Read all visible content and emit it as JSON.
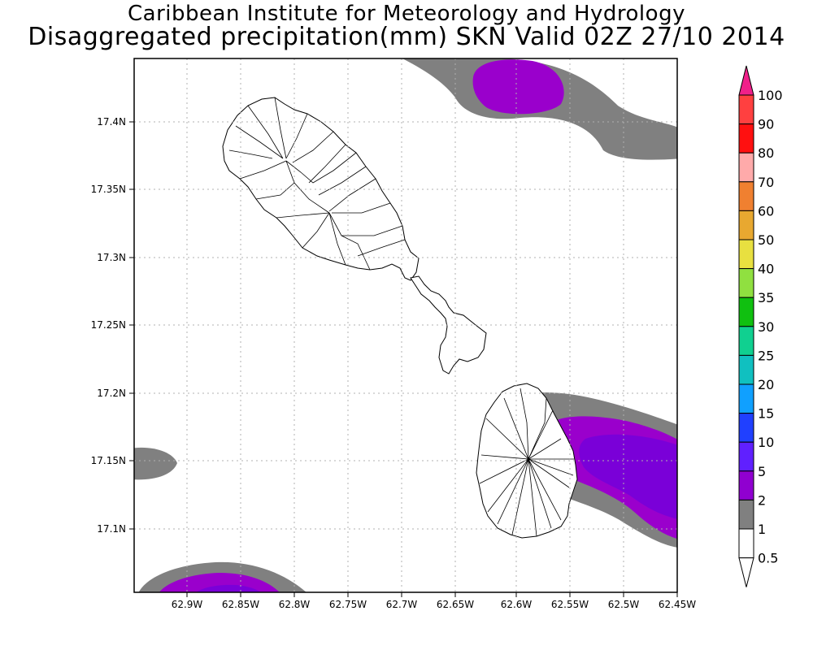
{
  "title": {
    "line1": "Caribbean Institute for Meteorology and Hydrology",
    "line2": "Disaggregated precipitation(mm) SKN Valid 02Z 27/10 2014"
  },
  "axes": {
    "x_ticks": [
      "62.9W",
      "62.85W",
      "62.8W",
      "62.75W",
      "62.7W",
      "62.65W",
      "62.6W",
      "62.55W",
      "62.5W",
      "62.45W"
    ],
    "y_ticks": [
      "17.4N",
      "17.35N",
      "17.3N",
      "17.25N",
      "17.2N",
      "17.15N",
      "17.1N"
    ]
  },
  "colorbar": {
    "labels": [
      "100",
      "90",
      "80",
      "70",
      "60",
      "50",
      "40",
      "35",
      "30",
      "25",
      "20",
      "15",
      "10",
      "5",
      "2",
      "1",
      "0.5"
    ],
    "colors": [
      "#f0208a",
      "#ff4040",
      "#ff1010",
      "#ffaaaa",
      "#f08030",
      "#e8a830",
      "#e8e040",
      "#90e040",
      "#10c010",
      "#10d090",
      "#10c0c0",
      "#10a0ff",
      "#2040ff",
      "#6020ff",
      "#9000d0",
      "#808080",
      "#ffffff"
    ]
  },
  "legend_colors": {
    "rain_0_5_to_1": "#808080",
    "rain_1_to_2": "#9a00cc",
    "rain_2_to_5": "#7a00d8"
  }
}
